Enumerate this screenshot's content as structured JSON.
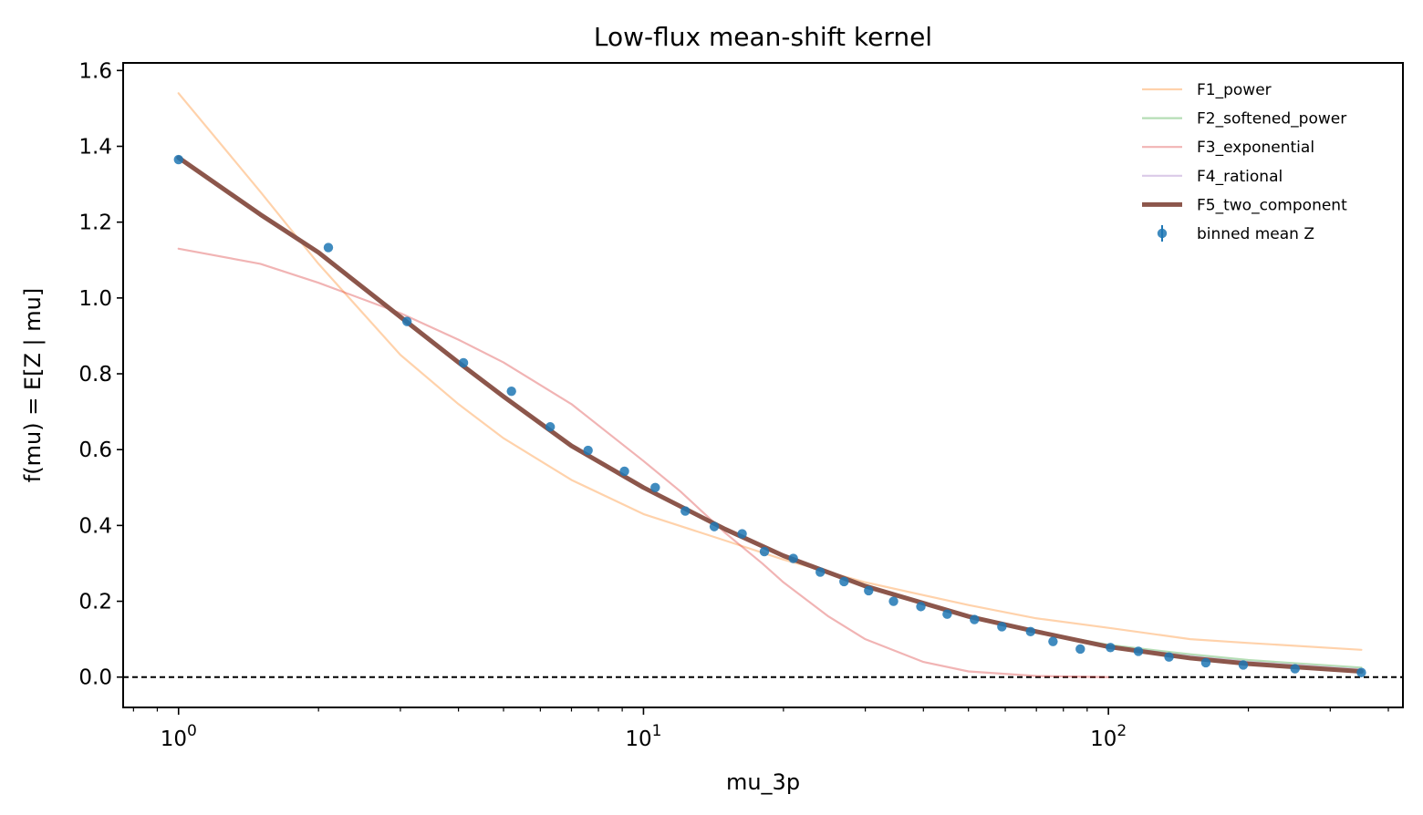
{
  "chart_data": {
    "type": "line",
    "title": "Low-flux mean-shift kernel",
    "xlabel": "mu_3p",
    "ylabel": "f(mu) = E[Z | mu]",
    "xscale": "log",
    "xlim": [
      0.76,
      430
    ],
    "ylim": [
      -0.08,
      1.62
    ],
    "x_ticks": [
      {
        "value": 1,
        "base": "10",
        "exp": "0"
      },
      {
        "value": 10,
        "base": "10",
        "exp": "1"
      },
      {
        "value": 100,
        "base": "10",
        "exp": "2"
      }
    ],
    "y_ticks": [
      "0.0",
      "0.2",
      "0.4",
      "0.6",
      "0.8",
      "1.0",
      "1.2",
      "1.4",
      "1.6"
    ],
    "reference_line": {
      "y": 0.0,
      "style": "dashed",
      "color": "#000000"
    },
    "grid": false,
    "legend_position": "top-right",
    "curves": [
      {
        "name": "F1_power",
        "color": "#ff7f0e",
        "alpha": 0.35,
        "width": "thin",
        "x": [
          1,
          1.5,
          2,
          3,
          4,
          5,
          7,
          10,
          15,
          20,
          30,
          50,
          70,
          100,
          150,
          200,
          350
        ],
        "y": [
          1.54,
          1.28,
          1.09,
          0.85,
          0.72,
          0.63,
          0.52,
          0.43,
          0.36,
          0.31,
          0.25,
          0.19,
          0.155,
          0.13,
          0.1,
          0.09,
          0.072
        ]
      },
      {
        "name": "F2_softened_power",
        "color": "#2ca02c",
        "alpha": 0.35,
        "width": "thin",
        "x": [
          1,
          1.5,
          2,
          3,
          4,
          5,
          7,
          10,
          15,
          20,
          30,
          50,
          70,
          100,
          150,
          200,
          350
        ],
        "y": [
          1.37,
          1.22,
          1.12,
          0.95,
          0.83,
          0.74,
          0.61,
          0.5,
          0.39,
          0.32,
          0.24,
          0.16,
          0.12,
          0.085,
          0.06,
          0.045,
          0.025
        ]
      },
      {
        "name": "F3_exponential",
        "color": "#d62728",
        "alpha": 0.35,
        "width": "thin",
        "x": [
          1,
          1.5,
          2,
          3,
          4,
          5,
          7,
          10,
          12,
          15,
          18,
          20,
          25,
          30,
          40,
          50,
          70,
          100
        ],
        "y": [
          1.13,
          1.09,
          1.04,
          0.96,
          0.89,
          0.83,
          0.72,
          0.57,
          0.49,
          0.38,
          0.3,
          0.25,
          0.16,
          0.1,
          0.04,
          0.015,
          0.003,
          0.0
        ]
      },
      {
        "name": "F4_rational",
        "color": "#9467bd",
        "alpha": 0.35,
        "width": "thin",
        "x": [
          1,
          1.5,
          2,
          3,
          4,
          5,
          7,
          10,
          15,
          20,
          30,
          50,
          70,
          100,
          150,
          200,
          350
        ],
        "y": [
          1.37,
          1.22,
          1.12,
          0.95,
          0.83,
          0.74,
          0.61,
          0.5,
          0.39,
          0.32,
          0.24,
          0.16,
          0.12,
          0.083,
          0.055,
          0.04,
          0.02
        ]
      },
      {
        "name": "F5_two_component",
        "color": "#8c564b",
        "alpha": 1.0,
        "width": "thick",
        "x": [
          1,
          1.5,
          2,
          3,
          4,
          5,
          7,
          10,
          15,
          20,
          30,
          50,
          70,
          100,
          150,
          200,
          350
        ],
        "y": [
          1.37,
          1.22,
          1.12,
          0.95,
          0.83,
          0.74,
          0.61,
          0.5,
          0.39,
          0.32,
          0.24,
          0.16,
          0.12,
          0.08,
          0.05,
          0.035,
          0.015
        ]
      }
    ],
    "points": {
      "name": "binned mean Z",
      "color": "#1f77b4",
      "x": [
        1.0,
        2.1,
        3.1,
        4.1,
        5.2,
        6.3,
        7.6,
        9.1,
        10.6,
        12.3,
        14.2,
        16.3,
        18.2,
        21.0,
        24.0,
        27.0,
        30.5,
        34.5,
        39.5,
        45.0,
        51.5,
        59.0,
        68.0,
        76.0,
        87.0,
        101.0,
        116.0,
        135.0,
        162.0,
        195.0,
        252.0,
        350.0
      ],
      "y": [
        1.365,
        1.133,
        0.938,
        0.829,
        0.754,
        0.66,
        0.598,
        0.543,
        0.5,
        0.438,
        0.397,
        0.378,
        0.331,
        0.313,
        0.277,
        0.252,
        0.228,
        0.2,
        0.186,
        0.166,
        0.152,
        0.133,
        0.12,
        0.094,
        0.074,
        0.078,
        0.068,
        0.053,
        0.038,
        0.032,
        0.022,
        0.012
      ]
    }
  }
}
